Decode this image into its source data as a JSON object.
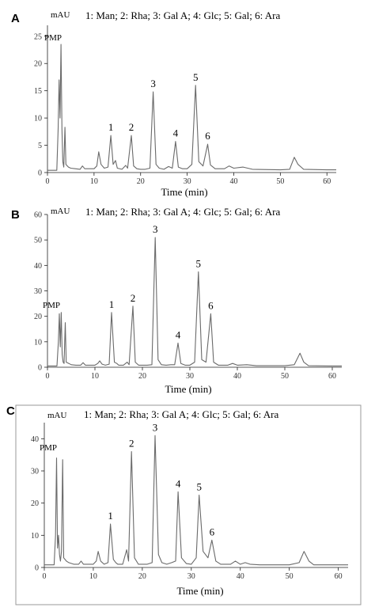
{
  "chart_data": [
    {
      "type": "line",
      "panel": "A",
      "unit_label": "mAU",
      "legend": "1: Man; 2: Rha; 3: Gal A; 4: Glc; 5: Gal; 6: Ara",
      "xlabel": "Time (min)",
      "xlim": [
        0,
        62
      ],
      "ylim": [
        0,
        27
      ],
      "xticks": [
        0,
        10,
        20,
        30,
        40,
        50,
        60
      ],
      "yticks": [
        0,
        5,
        10,
        15,
        20,
        25
      ],
      "pmp_label": "PMP",
      "peaks": [
        {
          "label": "1",
          "x": 13.6,
          "y": 6.8
        },
        {
          "label": "2",
          "x": 18.0,
          "y": 6.8
        },
        {
          "label": "3",
          "x": 22.7,
          "y": 14.8
        },
        {
          "label": "4",
          "x": 27.5,
          "y": 5.7
        },
        {
          "label": "5",
          "x": 31.8,
          "y": 16.0
        },
        {
          "label": "6",
          "x": 34.4,
          "y": 5.2
        }
      ],
      "series": [
        {
          "points": [
            [
              0,
              0.4
            ],
            [
              2,
              0.4
            ],
            [
              2.3,
              8
            ],
            [
              2.5,
              17
            ],
            [
              2.7,
              10
            ],
            [
              2.9,
              23.5
            ],
            [
              3.1,
              8
            ],
            [
              3.3,
              2
            ],
            [
              3.5,
              1
            ],
            [
              3.75,
              8.3
            ],
            [
              3.95,
              1.5
            ],
            [
              4.5,
              1
            ],
            [
              5,
              0.8
            ],
            [
              6,
              0.7
            ],
            [
              7,
              0.6
            ],
            [
              7.5,
              1.2
            ],
            [
              8,
              0.7
            ],
            [
              9,
              0.7
            ],
            [
              10,
              0.7
            ],
            [
              10.6,
              1.2
            ],
            [
              11,
              3.8
            ],
            [
              11.5,
              1.5
            ],
            [
              12.2,
              0.8
            ],
            [
              13,
              1
            ],
            [
              13.6,
              6.8
            ],
            [
              14.1,
              1.5
            ],
            [
              14.6,
              2.2
            ],
            [
              15,
              0.8
            ],
            [
              16,
              0.6
            ],
            [
              16.8,
              1.3
            ],
            [
              17.2,
              0.8
            ],
            [
              18,
              6.8
            ],
            [
              18.5,
              1.2
            ],
            [
              19.2,
              0.7
            ],
            [
              20,
              0.6
            ],
            [
              21,
              0.6
            ],
            [
              22,
              0.8
            ],
            [
              22.7,
              14.8
            ],
            [
              23.3,
              1.5
            ],
            [
              24,
              0.8
            ],
            [
              25,
              0.6
            ],
            [
              26,
              1.1
            ],
            [
              26.8,
              0.8
            ],
            [
              27.5,
              5.7
            ],
            [
              28.1,
              1
            ],
            [
              29,
              0.7
            ],
            [
              30,
              0.7
            ],
            [
              31,
              1.5
            ],
            [
              31.8,
              16
            ],
            [
              32.5,
              2
            ],
            [
              33.4,
              1.2
            ],
            [
              34.4,
              5.2
            ],
            [
              35,
              1.4
            ],
            [
              36,
              0.7
            ],
            [
              38,
              0.7
            ],
            [
              39,
              1.2
            ],
            [
              40,
              0.8
            ],
            [
              42,
              1
            ],
            [
              44,
              0.6
            ],
            [
              50,
              0.5
            ],
            [
              52,
              0.6
            ],
            [
              53,
              2.8
            ],
            [
              53.8,
              1.5
            ],
            [
              55,
              0.6
            ],
            [
              60,
              0.5
            ],
            [
              62,
              0.5
            ]
          ]
        }
      ]
    },
    {
      "type": "line",
      "panel": "B",
      "unit_label": "mAU",
      "legend": "1: Man; 2: Rha; 3: Gal A; 4: Glc; 5: Gal; 6: Ara",
      "xlabel": "Time (min)",
      "xlim": [
        0,
        62
      ],
      "ylim": [
        0,
        60
      ],
      "xticks": [
        0,
        10,
        20,
        30,
        40,
        50,
        60
      ],
      "yticks": [
        0,
        10,
        20,
        30,
        40,
        50,
        60
      ],
      "pmp_label": "PMP",
      "peaks": [
        {
          "label": "1",
          "x": 13.5,
          "y": 21.5
        },
        {
          "label": "2",
          "x": 18.0,
          "y": 24.0
        },
        {
          "label": "3",
          "x": 22.7,
          "y": 51.0
        },
        {
          "label": "4",
          "x": 27.5,
          "y": 9.5
        },
        {
          "label": "5",
          "x": 31.8,
          "y": 37.5
        },
        {
          "label": "6",
          "x": 34.4,
          "y": 21.0
        }
      ],
      "series": [
        {
          "points": [
            [
              0,
              0.5
            ],
            [
              2,
              0.5
            ],
            [
              2.3,
              10
            ],
            [
              2.5,
              21
            ],
            [
              2.7,
              8
            ],
            [
              2.9,
              21.5
            ],
            [
              3.1,
              5
            ],
            [
              3.3,
              2
            ],
            [
              3.5,
              1.5
            ],
            [
              3.75,
              17.5
            ],
            [
              3.95,
              2
            ],
            [
              4.5,
              1.5
            ],
            [
              5,
              1
            ],
            [
              6,
              0.8
            ],
            [
              7,
              0.8
            ],
            [
              7.5,
              1.8
            ],
            [
              8,
              0.8
            ],
            [
              9,
              0.8
            ],
            [
              10,
              0.8
            ],
            [
              10.6,
              1.5
            ],
            [
              11,
              2.5
            ],
            [
              11.5,
              1.2
            ],
            [
              12.2,
              0.8
            ],
            [
              13,
              1.2
            ],
            [
              13.5,
              21.5
            ],
            [
              14.1,
              2
            ],
            [
              14.6,
              1.5
            ],
            [
              15,
              0.8
            ],
            [
              16,
              0.8
            ],
            [
              16.8,
              2
            ],
            [
              17.2,
              1
            ],
            [
              18,
              24
            ],
            [
              18.5,
              2
            ],
            [
              19.2,
              0.8
            ],
            [
              20,
              0.8
            ],
            [
              21,
              0.8
            ],
            [
              22,
              1
            ],
            [
              22.7,
              51
            ],
            [
              23.3,
              3
            ],
            [
              24,
              1
            ],
            [
              25,
              0.8
            ],
            [
              26,
              1
            ],
            [
              26.8,
              1
            ],
            [
              27.5,
              9.5
            ],
            [
              28.1,
              1.5
            ],
            [
              29,
              0.8
            ],
            [
              30,
              0.8
            ],
            [
              31,
              2
            ],
            [
              31.8,
              37.5
            ],
            [
              32.5,
              3
            ],
            [
              33.4,
              2
            ],
            [
              34.4,
              21
            ],
            [
              35,
              2
            ],
            [
              36,
              0.8
            ],
            [
              38,
              0.8
            ],
            [
              39,
              1.5
            ],
            [
              40,
              0.8
            ],
            [
              42,
              1
            ],
            [
              44,
              0.6
            ],
            [
              50,
              0.6
            ],
            [
              52,
              1
            ],
            [
              53.2,
              5.5
            ],
            [
              54,
              2
            ],
            [
              55,
              0.6
            ],
            [
              60,
              0.5
            ],
            [
              62,
              0.5
            ]
          ]
        }
      ]
    },
    {
      "type": "line",
      "panel": "C",
      "unit_label": "mAU",
      "legend": "1: Man; 2: Rha; 3: Gal A; 4: Glc; 5: Gal; 6: Ara",
      "xlabel": "Time (min)",
      "xlim": [
        0,
        62
      ],
      "ylim": [
        0,
        45
      ],
      "xticks": [
        0,
        10,
        20,
        30,
        40,
        50,
        60
      ],
      "yticks": [
        0,
        10,
        20,
        30,
        40
      ],
      "pmp_label": "PMP",
      "peaks": [
        {
          "label": "1",
          "x": 13.5,
          "y": 13.5
        },
        {
          "label": "2",
          "x": 17.8,
          "y": 36.0
        },
        {
          "label": "3",
          "x": 22.6,
          "y": 41.0
        },
        {
          "label": "4",
          "x": 27.3,
          "y": 23.5
        },
        {
          "label": "5",
          "x": 31.6,
          "y": 22.5
        },
        {
          "label": "6",
          "x": 34.2,
          "y": 8.5
        }
      ],
      "series": [
        {
          "points": [
            [
              0,
              0.8
            ],
            [
              2,
              0.8
            ],
            [
              2.3,
              10
            ],
            [
              2.5,
              34
            ],
            [
              2.7,
              6
            ],
            [
              2.9,
              10
            ],
            [
              3.1,
              4
            ],
            [
              3.3,
              2
            ],
            [
              3.5,
              5
            ],
            [
              3.75,
              33.5
            ],
            [
              3.95,
              3
            ],
            [
              4.5,
              2
            ],
            [
              5,
              1.5
            ],
            [
              6,
              1
            ],
            [
              7,
              1
            ],
            [
              7.5,
              2
            ],
            [
              8,
              1
            ],
            [
              9,
              1
            ],
            [
              10,
              1
            ],
            [
              10.6,
              2
            ],
            [
              11,
              5
            ],
            [
              11.5,
              2
            ],
            [
              12.2,
              1
            ],
            [
              13,
              1.5
            ],
            [
              13.5,
              13.5
            ],
            [
              14.1,
              2.5
            ],
            [
              14.6,
              1.5
            ],
            [
              15,
              1
            ],
            [
              16,
              1
            ],
            [
              16.8,
              5.5
            ],
            [
              17.2,
              2
            ],
            [
              17.8,
              36
            ],
            [
              18.4,
              3
            ],
            [
              19.2,
              1
            ],
            [
              20,
              1
            ],
            [
              21,
              1
            ],
            [
              22,
              1.5
            ],
            [
              22.6,
              41
            ],
            [
              23.3,
              4
            ],
            [
              24,
              1.5
            ],
            [
              25,
              1
            ],
            [
              26,
              1.5
            ],
            [
              26.8,
              2
            ],
            [
              27.3,
              23.5
            ],
            [
              28,
              3
            ],
            [
              29,
              1.2
            ],
            [
              30,
              1
            ],
            [
              31,
              3
            ],
            [
              31.6,
              22.5
            ],
            [
              32.4,
              5
            ],
            [
              33.4,
              3
            ],
            [
              34.2,
              8.5
            ],
            [
              35,
              2
            ],
            [
              36,
              1
            ],
            [
              38,
              1
            ],
            [
              39,
              2
            ],
            [
              40,
              1
            ],
            [
              41,
              1.5
            ],
            [
              42,
              1
            ],
            [
              44,
              0.8
            ],
            [
              50,
              0.8
            ],
            [
              52,
              1.5
            ],
            [
              53,
              5
            ],
            [
              54,
              2
            ],
            [
              55,
              0.8
            ],
            [
              60,
              0.8
            ],
            [
              62,
              0.8
            ]
          ]
        }
      ]
    }
  ]
}
